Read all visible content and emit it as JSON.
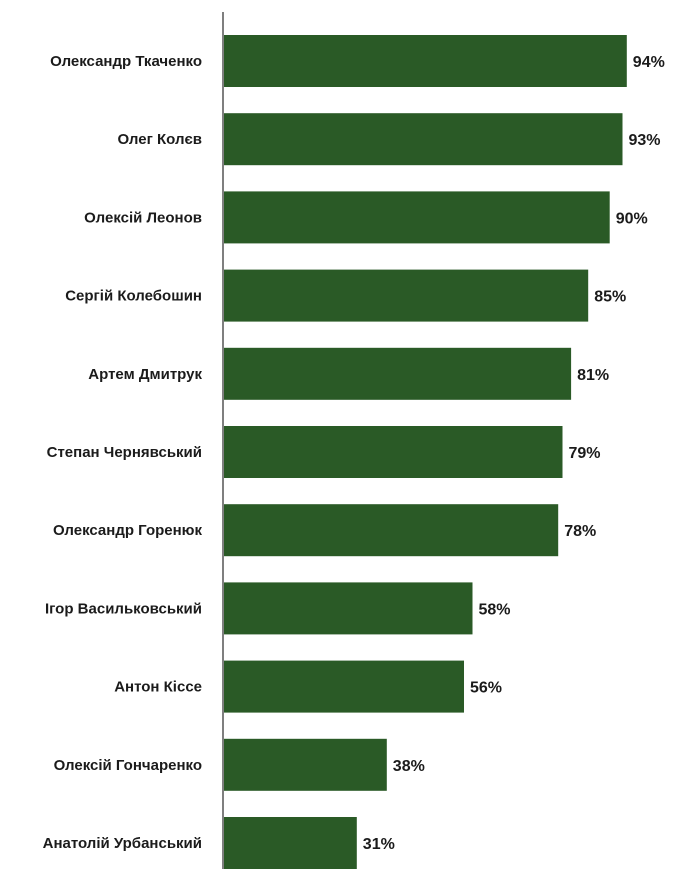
{
  "chart_data": {
    "type": "bar",
    "orientation": "horizontal",
    "categories": [
      "Олександр Ткаченко",
      "Олег Колєв",
      "Олексій Леонов",
      "Сергій Колебошин",
      "Артем Дмитрук",
      "Степан Чернявський",
      "Олександр Горенюк",
      "Ігор Васильковський",
      "Антон Кіссе",
      "Олексій Гончаренко",
      "Анатолій Урбанський"
    ],
    "values": [
      94,
      93,
      90,
      85,
      81,
      79,
      78,
      58,
      56,
      38,
      31
    ],
    "value_labels": [
      "94%",
      "93%",
      "90%",
      "85%",
      "81%",
      "79%",
      "78%",
      "58%",
      "56%",
      "38%",
      "31%"
    ],
    "unit": "%",
    "xlim": [
      0,
      100
    ],
    "grid": false,
    "legend": "none",
    "colors": {
      "bar": "#2a5a26",
      "axis": "#555555",
      "text": "#1b1b1b"
    }
  }
}
